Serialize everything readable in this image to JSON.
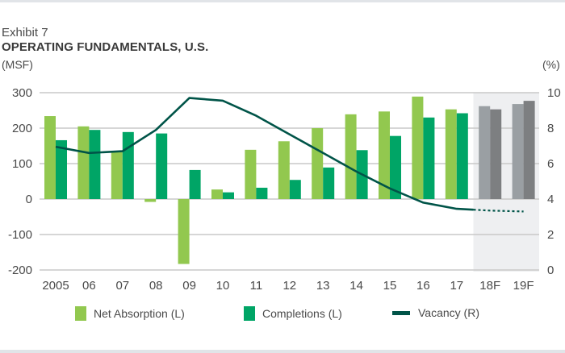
{
  "header": {
    "exhibit": "Exhibit 7",
    "title": "OPERATING FUNDAMENTALS, U.S.",
    "left_unit": "(MSF)",
    "right_unit": "(%)"
  },
  "colors": {
    "net_absorption": "#92c84f",
    "completions": "#00a566",
    "vacancy": "#005448",
    "forecast_net_absorption": "#9a9fa3",
    "forecast_completions": "#7d7f81",
    "forecast_shade": "#eeeff1",
    "grid": "#c8c8c8"
  },
  "chart_data": {
    "type": "bar",
    "title": "OPERATING FUNDAMENTALS, U.S.",
    "xlabel": "",
    "ylabel": "(MSF)",
    "y2label": "(%)",
    "categories": [
      "2005",
      "06",
      "07",
      "08",
      "09",
      "10",
      "11",
      "12",
      "13",
      "14",
      "15",
      "16",
      "17",
      "18F",
      "19F"
    ],
    "forecast_categories": [
      "18F",
      "19F"
    ],
    "ylim": [
      -200,
      300
    ],
    "y_ticks": [
      "-200",
      "-100",
      "0",
      "100",
      "200",
      "300"
    ],
    "y2lim": [
      0,
      10
    ],
    "y2_ticks": [
      "0",
      "2",
      "4",
      "6",
      "8",
      "10"
    ],
    "grid": true,
    "legend_position": "bottom",
    "series": [
      {
        "name": "Net Absorption (L)",
        "axis": "left",
        "type": "bar",
        "values": [
          234,
          205,
          136,
          -8,
          -183,
          27,
          139,
          163,
          200,
          239,
          247,
          289,
          253,
          262,
          268
        ]
      },
      {
        "name": "Completions (L)",
        "axis": "left",
        "type": "bar",
        "values": [
          166,
          195,
          189,
          185,
          82,
          19,
          32,
          54,
          89,
          138,
          178,
          230,
          242,
          253,
          277
        ]
      },
      {
        "name": "Vacancy (R)",
        "axis": "right",
        "type": "line",
        "values": [
          6.95,
          6.6,
          6.7,
          7.9,
          9.7,
          9.55,
          8.7,
          7.65,
          6.6,
          5.55,
          4.6,
          3.8,
          3.45,
          3.35,
          3.3
        ],
        "forecast_from_index": 12
      }
    ]
  },
  "legend": [
    {
      "label": "Net Absorption (L)",
      "kind": "bar"
    },
    {
      "label": "Completions (L)",
      "kind": "bar"
    },
    {
      "label": "Vacancy (R)",
      "kind": "line"
    }
  ]
}
